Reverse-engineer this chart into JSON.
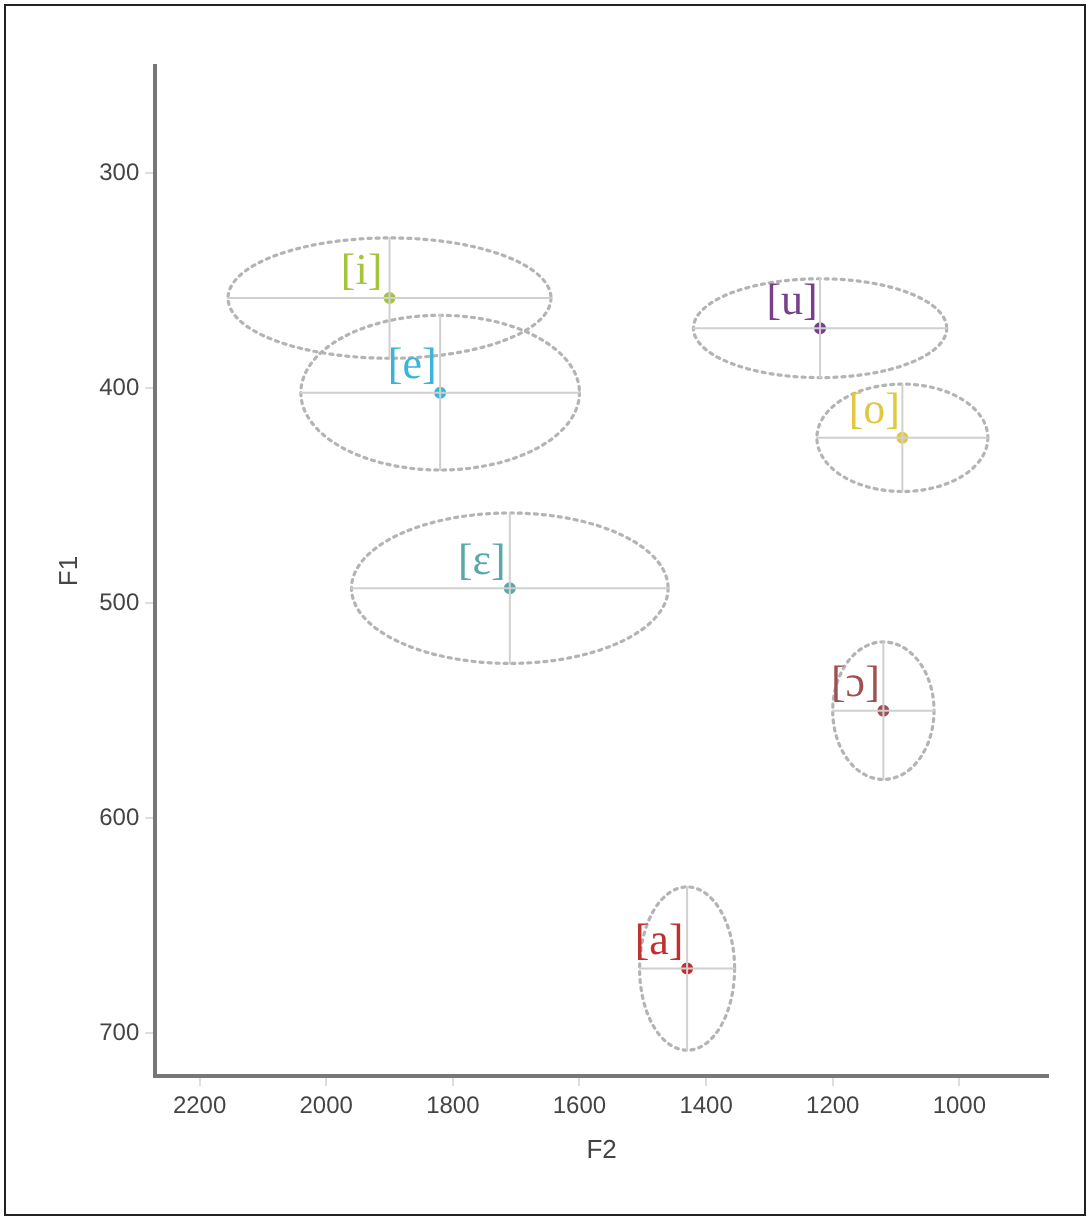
{
  "chart_data": {
    "type": "scatter",
    "xlabel": "F2",
    "ylabel": "F1",
    "xlim": [
      2270,
      860
    ],
    "ylim": [
      720,
      250
    ],
    "xticks": [
      2200,
      2000,
      1800,
      1600,
      1400,
      1200,
      1000
    ],
    "yticks": [
      300,
      400,
      500,
      600,
      700
    ],
    "grid": false,
    "legend": false,
    "marker": "circle",
    "line_style": "dotted",
    "series": [
      {
        "name": "[i]",
        "color": "#a4c43c",
        "x": [
          1900
        ],
        "values": [
          358
        ],
        "xerrors": [
          255
        ],
        "errors": [
          28
        ]
      },
      {
        "name": "[e]",
        "color": "#3ab4d8",
        "x": [
          1820
        ],
        "values": [
          402
        ],
        "xerrors": [
          220
        ],
        "errors": [
          36
        ]
      },
      {
        "name": "[ɛ]",
        "color": "#5aa8a8",
        "x": [
          1710
        ],
        "values": [
          493
        ],
        "xerrors": [
          250
        ],
        "errors": [
          35
        ]
      },
      {
        "name": "[u]",
        "color": "#7a3f8a",
        "x": [
          1220
        ],
        "values": [
          372
        ],
        "xerrors": [
          200
        ],
        "errors": [
          23
        ]
      },
      {
        "name": "[o]",
        "color": "#e0c840",
        "x": [
          1090
        ],
        "values": [
          423
        ],
        "xerrors": [
          135
        ],
        "errors": [
          25
        ]
      },
      {
        "name": "[ɔ]",
        "color": "#a05050",
        "x": [
          1120
        ],
        "values": [
          550
        ],
        "xerrors": [
          80
        ],
        "errors": [
          32
        ]
      },
      {
        "name": "[a]",
        "color": "#c03030",
        "x": [
          1430
        ],
        "values": [
          670
        ],
        "xerrors": [
          75
        ],
        "errors": [
          38
        ]
      }
    ]
  }
}
